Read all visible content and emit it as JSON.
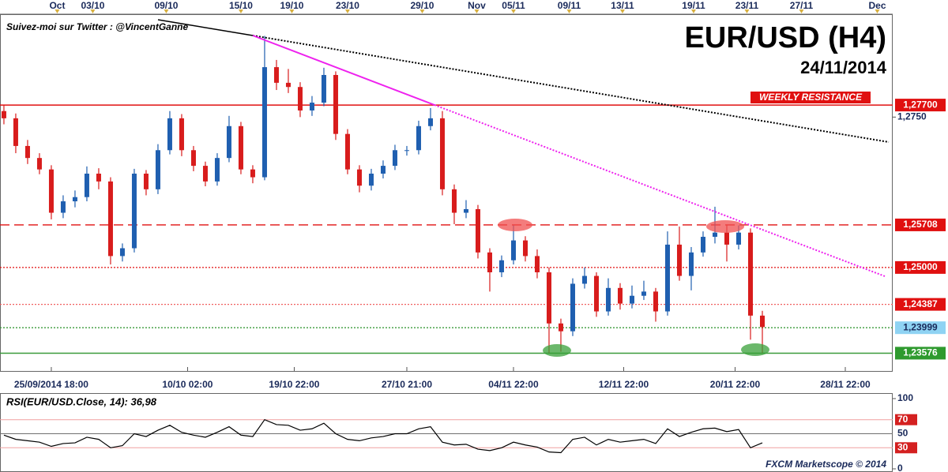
{
  "chart_data": {
    "type": "candlestick",
    "title": "EUR/USD (H4)",
    "subtitle": "24/11/2014",
    "credit": "Suivez-moi sur Twitter : @VincentGanne",
    "source": "FXCM Marketscope © 2014",
    "annotation": "WEEKLY RESISTANCE",
    "up_color": "#1f5fb0",
    "down_color": "#d81c1c",
    "ohlc": [
      [
        1.276,
        1.277,
        1.2738,
        1.2748
      ],
      [
        1.2748,
        1.2756,
        1.269,
        1.2702
      ],
      [
        1.2702,
        1.2712,
        1.2672,
        1.2682
      ],
      [
        1.2682,
        1.269,
        1.2655,
        1.2663
      ],
      [
        1.2663,
        1.267,
        1.258,
        1.2591
      ],
      [
        1.2591,
        1.262,
        1.2582,
        1.261
      ],
      [
        1.261,
        1.2628,
        1.26,
        1.2617
      ],
      [
        1.2617,
        1.2668,
        1.261,
        1.2656
      ],
      [
        1.2656,
        1.2665,
        1.263,
        1.2643
      ],
      [
        1.2643,
        1.265,
        1.2505,
        1.2519
      ],
      [
        1.2519,
        1.254,
        1.251,
        1.2532
      ],
      [
        1.2532,
        1.2664,
        1.2525,
        1.2656
      ],
      [
        1.2656,
        1.2662,
        1.262,
        1.263
      ],
      [
        1.263,
        1.2705,
        1.2622,
        1.2695
      ],
      [
        1.2695,
        1.276,
        1.2688,
        1.2748
      ],
      [
        1.2748,
        1.2755,
        1.2685,
        1.2695
      ],
      [
        1.2695,
        1.2702,
        1.266,
        1.2669
      ],
      [
        1.2669,
        1.2676,
        1.2635,
        1.2643
      ],
      [
        1.2643,
        1.269,
        1.2636,
        1.2682
      ],
      [
        1.2682,
        1.2752,
        1.2675,
        1.2735
      ],
      [
        1.2735,
        1.2742,
        1.2655,
        1.2663
      ],
      [
        1.2663,
        1.267,
        1.264,
        1.265
      ],
      [
        1.265,
        1.2885,
        1.2645,
        1.2833
      ],
      [
        1.2833,
        1.2845,
        1.2795,
        1.2807
      ],
      [
        1.2807,
        1.283,
        1.279,
        1.28
      ],
      [
        1.28,
        1.2808,
        1.275,
        1.2761
      ],
      [
        1.2761,
        1.2785,
        1.2752,
        1.2774
      ],
      [
        1.2774,
        1.2832,
        1.2768,
        1.282
      ],
      [
        1.282,
        1.2826,
        1.2712,
        1.2722
      ],
      [
        1.2722,
        1.273,
        1.2655,
        1.2663
      ],
      [
        1.2663,
        1.267,
        1.2625,
        1.2636
      ],
      [
        1.2636,
        1.2664,
        1.2628,
        1.2656
      ],
      [
        1.2656,
        1.2678,
        1.2648,
        1.2669
      ],
      [
        1.2669,
        1.2704,
        1.2662,
        1.2695
      ],
      [
        1.2695,
        1.2702,
        1.2686,
        1.2695
      ],
      [
        1.2695,
        1.2744,
        1.2688,
        1.2735
      ],
      [
        1.2735,
        1.2765,
        1.2728,
        1.2748
      ],
      [
        1.2748,
        1.276,
        1.262,
        1.263
      ],
      [
        1.263,
        1.2638,
        1.2572,
        1.2591
      ],
      [
        1.2591,
        1.2612,
        1.2582,
        1.2597
      ],
      [
        1.2597,
        1.2604,
        1.2515,
        1.2525
      ],
      [
        1.2525,
        1.2532,
        1.246,
        1.2492
      ],
      [
        1.2492,
        1.252,
        1.2484,
        1.2512
      ],
      [
        1.2512,
        1.257,
        1.2505,
        1.2545
      ],
      [
        1.2545,
        1.2552,
        1.251,
        1.2519
      ],
      [
        1.2519,
        1.253,
        1.2482,
        1.2492
      ],
      [
        1.2492,
        1.25,
        1.2358,
        1.2407
      ],
      [
        1.2407,
        1.2415,
        1.236,
        1.2394
      ],
      [
        1.2394,
        1.2482,
        1.2386,
        1.2473
      ],
      [
        1.2473,
        1.25,
        1.2465,
        1.2486
      ],
      [
        1.2486,
        1.2492,
        1.2418,
        1.2427
      ],
      [
        1.2427,
        1.2482,
        1.242,
        1.2466
      ],
      [
        1.2466,
        1.2474,
        1.243,
        1.244
      ],
      [
        1.244,
        1.247,
        1.2432,
        1.2453
      ],
      [
        1.2453,
        1.2478,
        1.2446,
        1.246
      ],
      [
        1.246,
        1.2466,
        1.241,
        1.2427
      ],
      [
        1.2427,
        1.256,
        1.242,
        1.2538
      ],
      [
        1.2538,
        1.2568,
        1.2478,
        1.2486
      ],
      [
        1.2486,
        1.2534,
        1.2462,
        1.2525
      ],
      [
        1.2525,
        1.256,
        1.2518,
        1.2551
      ],
      [
        1.2551,
        1.2601,
        1.254,
        1.2558
      ],
      [
        1.2558,
        1.257,
        1.251,
        1.2538
      ],
      [
        1.2538,
        1.257,
        1.253,
        1.2558
      ],
      [
        1.2558,
        1.2565,
        1.238,
        1.242
      ],
      [
        1.242,
        1.2428,
        1.2358,
        1.2401
      ]
    ],
    "xlim": [
      -0.33,
      75
    ],
    "xticks": [
      {
        "value": 4,
        "label": "25/09/2014 18:00"
      },
      {
        "value": 15.5,
        "label": "10/10 02:00"
      },
      {
        "value": 24.5,
        "label": "19/10 22:00"
      },
      {
        "value": 34,
        "label": "27/10 21:00"
      },
      {
        "value": 43,
        "label": "04/11 22:00"
      },
      {
        "value": 52.3,
        "label": "12/11 22:00"
      },
      {
        "value": 61.7,
        "label": "20/11 22:00"
      },
      {
        "value": 71,
        "label": "28/11 22:00"
      }
    ],
    "xticks_top": [
      {
        "value": 4.5,
        "label": "Oct"
      },
      {
        "value": 7.5,
        "label": "03/10"
      },
      {
        "value": 13.7,
        "label": "09/10"
      },
      {
        "value": 20,
        "label": "15/10"
      },
      {
        "value": 24.3,
        "label": "19/10"
      },
      {
        "value": 29,
        "label": "23/10"
      },
      {
        "value": 35.3,
        "label": "29/10"
      },
      {
        "value": 39.9,
        "label": "Nov"
      },
      {
        "value": 43,
        "label": "05/11"
      },
      {
        "value": 47.7,
        "label": "09/11"
      },
      {
        "value": 52.2,
        "label": "13/11"
      },
      {
        "value": 58.2,
        "label": "19/11"
      },
      {
        "value": 62.7,
        "label": "23/11"
      },
      {
        "value": 67.3,
        "label": "27/11"
      },
      {
        "value": 73.7,
        "label": "Dec"
      }
    ],
    "ylim": [
      1.2328,
      1.2921
    ],
    "yticks": [
      {
        "value": 1.275,
        "label": "1,2750"
      }
    ],
    "levels": [
      {
        "value": 1.277,
        "label": "1,27700",
        "color": "#e01010",
        "style": "solid",
        "label_fill": "#e01010",
        "label_color": "#ffffff"
      },
      {
        "value": 1.25708,
        "label": "1,25708",
        "color": "#e01010",
        "style": "dashed",
        "label_fill": "#e01010",
        "label_color": "#ffffff"
      },
      {
        "value": 1.25,
        "label": "1,25000",
        "color": "#e01010",
        "style": "dotted",
        "label_fill": "#e01010",
        "label_color": "#ffffff"
      },
      {
        "value": 1.24387,
        "label": "1,24387",
        "color": "#f06060",
        "style": "dotted",
        "label_fill": "#e01010",
        "label_color": "#ffffff"
      },
      {
        "value": 1.23999,
        "label": "1,23999",
        "color": "#3a9a3a",
        "style": "dotted",
        "label_fill": "#8fd3f3",
        "label_color": "#1a2a5a"
      },
      {
        "value": 1.23576,
        "label": "1,23576",
        "color": "#3a9a3a",
        "style": "solid",
        "label_fill": "#2e9a2e",
        "label_color": "#ffffff"
      }
    ],
    "rsi": {
      "label": "RSI(EUR/USD.Close, 14): 36,98",
      "color": "#000000",
      "values": [
        48,
        42,
        40,
        38,
        32,
        36,
        37,
        45,
        42,
        30,
        33,
        50,
        46,
        55,
        62,
        52,
        48,
        45,
        52,
        60,
        48,
        46,
        70,
        63,
        62,
        55,
        57,
        65,
        50,
        42,
        40,
        44,
        46,
        50,
        50,
        57,
        60,
        38,
        34,
        35,
        28,
        26,
        30,
        38,
        34,
        31,
        24,
        23,
        42,
        45,
        34,
        42,
        38,
        40,
        42,
        36,
        57,
        46,
        52,
        57,
        58,
        53,
        56,
        30,
        36.98
      ],
      "ylim": [
        0,
        100
      ],
      "yticks": [
        100,
        70,
        50,
        30,
        0
      ],
      "line_colors": [
        null,
        "#f0a0a0",
        "#707070",
        "#f0a0a0",
        null
      ],
      "label_fills": [
        null,
        "#d42020",
        null,
        "#d42020",
        null
      ]
    }
  }
}
